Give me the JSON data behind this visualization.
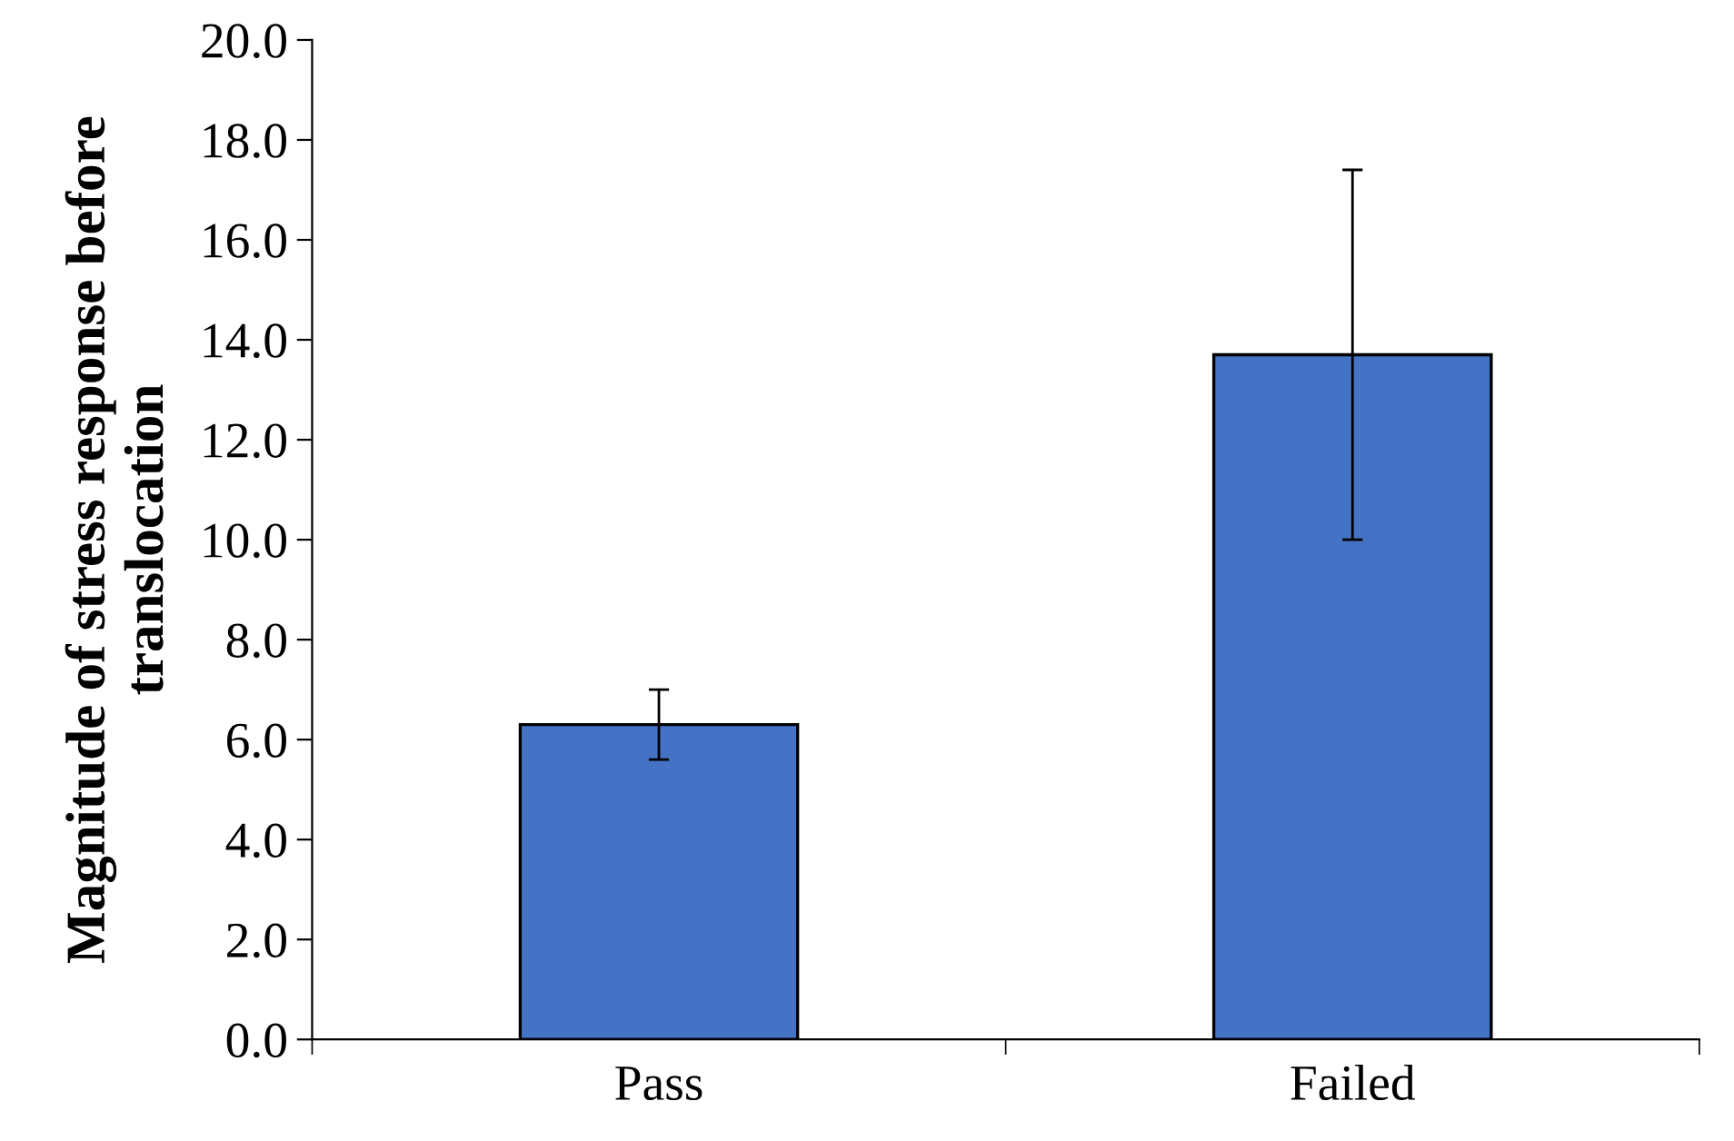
{
  "chart_data": {
    "type": "bar",
    "ylabel": "Magnitude of stress response before translocation",
    "categories": [
      "Pass",
      "Failed"
    ],
    "values": [
      6.3,
      13.7
    ],
    "errors": [
      0.7,
      3.7
    ],
    "color": "#4472c4",
    "ylim": [
      0,
      20
    ],
    "yticks": [
      {
        "value": 0,
        "label": "0.0"
      },
      {
        "value": 2,
        "label": "2.0"
      },
      {
        "value": 4,
        "label": "4.0"
      },
      {
        "value": 6,
        "label": "6.0"
      },
      {
        "value": 8,
        "label": "8.0"
      },
      {
        "value": 10,
        "label": "10.0"
      },
      {
        "value": 12,
        "label": "12.0"
      },
      {
        "value": 14,
        "label": "14.0"
      },
      {
        "value": 16,
        "label": "16.0"
      },
      {
        "value": 18,
        "label": "18.0"
      },
      {
        "value": 20,
        "label": "20.0"
      }
    ],
    "grid": false,
    "legend": false
  }
}
